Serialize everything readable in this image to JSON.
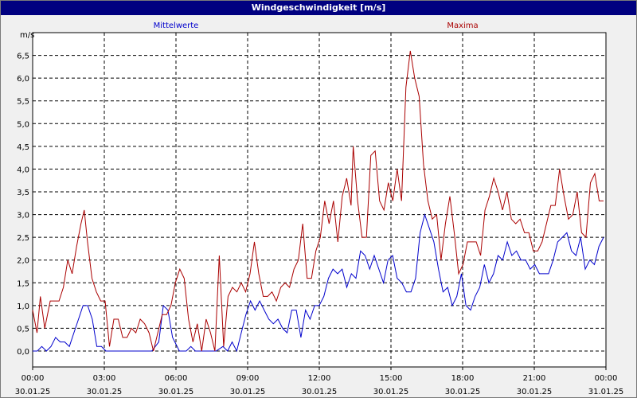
{
  "window": {
    "title": "Windgeschwindigkeit [m/s]"
  },
  "chart_data": {
    "type": "line",
    "title": "Windgeschwindigkeit [m/s]",
    "ylabel": "m/s",
    "xlabel": "",
    "ylim": [
      -0.35,
      7.0
    ],
    "xlim": [
      "30.01.25 00:00",
      "31.01.25 00:00"
    ],
    "x_unit": "hours from 30.01.25 00:00",
    "grid": true,
    "y_ticks": [
      "0,0",
      "0,5",
      "1,0",
      "1,5",
      "2,0",
      "2,5",
      "3,0",
      "3,5",
      "4,0",
      "4,5",
      "5,0",
      "5,5",
      "6,0",
      "6,5"
    ],
    "x_ticks": [
      {
        "time": "00:00",
        "date": "30.01.25"
      },
      {
        "time": "03:00",
        "date": "30.01.25"
      },
      {
        "time": "06:00",
        "date": "30.01.25"
      },
      {
        "time": "09:00",
        "date": "30.01.25"
      },
      {
        "time": "12:00",
        "date": "30.01.25"
      },
      {
        "time": "15:00",
        "date": "30.01.25"
      },
      {
        "time": "18:00",
        "date": "30.01.25"
      },
      {
        "time": "21:00",
        "date": "30.01.25"
      },
      {
        "time": "00:00",
        "date": "31.01.25"
      }
    ],
    "series": [
      {
        "name": "Mittelwerte",
        "color": "#0000cc",
        "points": [
          [
            0,
            0
          ],
          [
            0.2,
            0
          ],
          [
            0.4,
            0.1
          ],
          [
            0.6,
            0
          ],
          [
            0.8,
            0.1
          ],
          [
            1.0,
            0.3
          ],
          [
            1.2,
            0.2
          ],
          [
            1.4,
            0.2
          ],
          [
            1.6,
            0.1
          ],
          [
            1.8,
            0.4
          ],
          [
            2.0,
            0.7
          ],
          [
            2.2,
            1.0
          ],
          [
            2.4,
            1.0
          ],
          [
            2.6,
            0.7
          ],
          [
            2.8,
            0.1
          ],
          [
            3.0,
            0.1
          ],
          [
            3.2,
            0
          ],
          [
            3.4,
            0
          ],
          [
            4,
            0
          ],
          [
            4.6,
            0
          ],
          [
            5.2,
            0
          ],
          [
            5.5,
            0.2
          ],
          [
            5.7,
            1.0
          ],
          [
            5.9,
            0.9
          ],
          [
            6.1,
            0.3
          ],
          [
            6.4,
            0
          ],
          [
            6.7,
            0
          ],
          [
            6.9,
            0.1
          ],
          [
            7.1,
            0
          ],
          [
            7.5,
            0
          ],
          [
            8.0,
            0
          ],
          [
            8.3,
            0.1
          ],
          [
            8.5,
            0
          ],
          [
            8.7,
            0.2
          ],
          [
            8.9,
            0
          ],
          [
            9.1,
            0.4
          ],
          [
            9.3,
            0.8
          ],
          [
            9.5,
            1.1
          ],
          [
            9.7,
            0.9
          ],
          [
            9.9,
            1.1
          ],
          [
            10.1,
            0.9
          ],
          [
            10.3,
            0.7
          ],
          [
            10.5,
            0.6
          ],
          [
            10.7,
            0.7
          ],
          [
            10.9,
            0.5
          ],
          [
            11.1,
            0.4
          ],
          [
            11.3,
            0.9
          ],
          [
            11.5,
            0.9
          ],
          [
            11.7,
            0.3
          ],
          [
            11.9,
            0.9
          ],
          [
            12.1,
            0.7
          ],
          [
            12.3,
            1.0
          ],
          [
            12.5,
            1.0
          ],
          [
            12.7,
            1.2
          ],
          [
            12.9,
            1.6
          ],
          [
            13.1,
            1.8
          ],
          [
            13.3,
            1.7
          ],
          [
            13.5,
            1.8
          ],
          [
            13.7,
            1.4
          ],
          [
            13.9,
            1.7
          ],
          [
            14.1,
            1.6
          ],
          [
            14.3,
            2.2
          ],
          [
            14.5,
            2.1
          ],
          [
            14.7,
            1.8
          ],
          [
            14.9,
            2.1
          ],
          [
            15.1,
            1.8
          ],
          [
            15.3,
            1.5
          ],
          [
            15.5,
            2.0
          ],
          [
            15.7,
            2.1
          ],
          [
            15.9,
            1.6
          ],
          [
            16.1,
            1.5
          ],
          [
            16.3,
            1.3
          ],
          [
            16.5,
            1.3
          ],
          [
            16.7,
            1.6
          ],
          [
            16.9,
            2.6
          ],
          [
            17.1,
            3.0
          ],
          [
            17.3,
            2.7
          ],
          [
            17.5,
            2.4
          ],
          [
            17.7,
            1.8
          ],
          [
            17.9,
            1.3
          ],
          [
            18.1,
            1.4
          ],
          [
            18.3,
            1.0
          ],
          [
            18.5,
            1.2
          ],
          [
            18.7,
            1.7
          ],
          [
            18.9,
            1.0
          ],
          [
            19.1,
            0.9
          ],
          [
            19.3,
            1.2
          ],
          [
            19.5,
            1.4
          ],
          [
            19.7,
            1.9
          ],
          [
            19.9,
            1.5
          ],
          [
            20.1,
            1.7
          ],
          [
            20.3,
            2.1
          ],
          [
            20.5,
            2.0
          ],
          [
            20.7,
            2.4
          ],
          [
            20.9,
            2.1
          ],
          [
            21.1,
            2.2
          ],
          [
            21.3,
            2.0
          ],
          [
            21.5,
            2.0
          ],
          [
            21.7,
            1.8
          ],
          [
            21.9,
            1.9
          ],
          [
            22.1,
            1.7
          ],
          [
            22.3,
            1.7
          ],
          [
            22.5,
            1.7
          ],
          [
            22.7,
            2.0
          ],
          [
            22.9,
            2.4
          ],
          [
            23.1,
            2.5
          ],
          [
            23.3,
            2.6
          ],
          [
            23.5,
            2.2
          ],
          [
            23.7,
            2.1
          ],
          [
            23.9,
            2.5
          ],
          [
            24.1,
            1.8
          ],
          [
            24.3,
            2.0
          ],
          [
            24.5,
            1.9
          ],
          [
            24.7,
            2.3
          ],
          [
            24.9,
            2.5
          ]
        ]
      },
      {
        "name": "Maxima",
        "color": "#aa0000",
        "points": [
          [
            0,
            0.9
          ],
          [
            0.2,
            0.4
          ],
          [
            0.35,
            1.2
          ],
          [
            0.55,
            0.5
          ],
          [
            0.8,
            1.1
          ],
          [
            1.0,
            1.1
          ],
          [
            1.2,
            1.1
          ],
          [
            1.4,
            1.4
          ],
          [
            1.6,
            2.0
          ],
          [
            1.8,
            1.7
          ],
          [
            2.0,
            2.3
          ],
          [
            2.2,
            2.8
          ],
          [
            2.35,
            3.1
          ],
          [
            2.5,
            2.4
          ],
          [
            2.7,
            1.6
          ],
          [
            2.9,
            1.3
          ],
          [
            3.1,
            1.1
          ],
          [
            3.3,
            1.1
          ],
          [
            3.5,
            0.1
          ],
          [
            3.7,
            0.7
          ],
          [
            3.9,
            0.7
          ],
          [
            4.1,
            0.3
          ],
          [
            4.3,
            0.3
          ],
          [
            4.5,
            0.5
          ],
          [
            4.7,
            0.4
          ],
          [
            4.9,
            0.7
          ],
          [
            5.1,
            0.6
          ],
          [
            5.3,
            0.4
          ],
          [
            5.5,
            0
          ],
          [
            5.7,
            0.4
          ],
          [
            5.9,
            0.8
          ],
          [
            6.1,
            0.8
          ],
          [
            6.3,
            1.0
          ],
          [
            6.5,
            1.5
          ],
          [
            6.7,
            1.8
          ],
          [
            6.9,
            1.6
          ],
          [
            7.1,
            0.7
          ],
          [
            7.3,
            0.2
          ],
          [
            7.5,
            0.6
          ],
          [
            7.7,
            0
          ],
          [
            7.9,
            0.7
          ],
          [
            8.1,
            0.4
          ],
          [
            8.3,
            0
          ],
          [
            8.5,
            2.1
          ],
          [
            8.7,
            0.1
          ],
          [
            8.9,
            1.2
          ],
          [
            9.1,
            1.4
          ],
          [
            9.3,
            1.3
          ],
          [
            9.5,
            1.5
          ],
          [
            9.7,
            1.3
          ],
          [
            9.9,
            1.7
          ],
          [
            10.1,
            2.4
          ],
          [
            10.3,
            1.7
          ],
          [
            10.5,
            1.2
          ],
          [
            10.7,
            1.2
          ],
          [
            10.9,
            1.3
          ],
          [
            11.1,
            1.1
          ],
          [
            11.3,
            1.4
          ],
          [
            11.5,
            1.5
          ],
          [
            11.7,
            1.4
          ],
          [
            11.9,
            1.8
          ],
          [
            12.1,
            2.0
          ],
          [
            12.3,
            2.8
          ],
          [
            12.5,
            1.6
          ],
          [
            12.7,
            1.6
          ],
          [
            12.9,
            2.2
          ],
          [
            13.1,
            2.5
          ],
          [
            13.3,
            3.3
          ],
          [
            13.5,
            2.8
          ],
          [
            13.7,
            3.3
          ],
          [
            13.9,
            2.4
          ],
          [
            14.1,
            3.4
          ],
          [
            14.3,
            3.8
          ],
          [
            14.5,
            3.2
          ],
          [
            14.6,
            4.5
          ],
          [
            14.8,
            3.3
          ],
          [
            15.0,
            2.5
          ],
          [
            15.2,
            2.5
          ],
          [
            15.4,
            4.3
          ],
          [
            15.6,
            4.4
          ],
          [
            15.8,
            3.3
          ],
          [
            16.0,
            3.1
          ],
          [
            16.2,
            3.7
          ],
          [
            16.4,
            3.3
          ],
          [
            16.6,
            4.0
          ],
          [
            16.8,
            3.3
          ],
          [
            17.0,
            5.8
          ],
          [
            17.2,
            6.6
          ],
          [
            17.4,
            6.0
          ],
          [
            17.6,
            5.6
          ],
          [
            17.8,
            4.1
          ],
          [
            18.0,
            3.3
          ],
          [
            18.2,
            2.9
          ],
          [
            18.4,
            3.0
          ],
          [
            18.6,
            2.0
          ],
          [
            18.8,
            2.8
          ],
          [
            19.0,
            3.4
          ],
          [
            19.2,
            2.6
          ],
          [
            19.4,
            1.7
          ],
          [
            19.6,
            1.9
          ],
          [
            19.8,
            2.4
          ],
          [
            20.0,
            2.4
          ],
          [
            20.2,
            2.4
          ],
          [
            20.4,
            2.1
          ],
          [
            20.6,
            3.1
          ],
          [
            20.8,
            3.4
          ],
          [
            21.0,
            3.8
          ],
          [
            21.2,
            3.5
          ],
          [
            21.4,
            3.1
          ],
          [
            21.6,
            3.5
          ],
          [
            21.8,
            2.9
          ],
          [
            22.0,
            2.8
          ],
          [
            22.2,
            2.9
          ],
          [
            22.4,
            2.6
          ],
          [
            22.6,
            2.6
          ],
          [
            22.8,
            2.2
          ],
          [
            23.0,
            2.2
          ],
          [
            23.2,
            2.4
          ],
          [
            23.4,
            2.8
          ],
          [
            23.6,
            3.2
          ],
          [
            23.8,
            3.2
          ],
          [
            24.0,
            4.0
          ],
          [
            24.2,
            3.4
          ],
          [
            24.4,
            2.9
          ],
          [
            24.6,
            3.0
          ],
          [
            24.8,
            3.5
          ],
          [
            25.0,
            2.6
          ],
          [
            25.2,
            2.5
          ],
          [
            25.4,
            3.7
          ],
          [
            25.6,
            3.9
          ],
          [
            25.8,
            3.3
          ],
          [
            26.0,
            3.3
          ]
        ]
      }
    ]
  }
}
